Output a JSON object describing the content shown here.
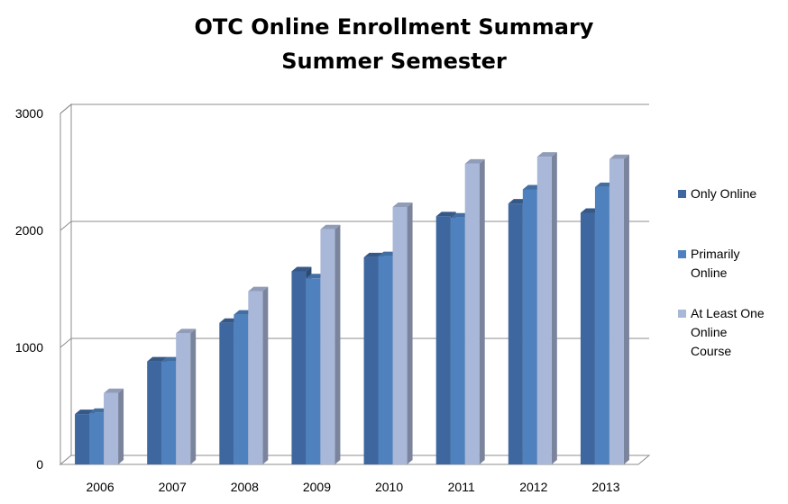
{
  "chart_data": {
    "type": "bar",
    "title": [
      "OTC Online Enrollment Summary",
      "Summer Semester"
    ],
    "categories": [
      "2006",
      "2007",
      "2008",
      "2009",
      "2010",
      "2011",
      "2012",
      "2013"
    ],
    "series": [
      {
        "name": "Only Online",
        "values": [
          430,
          880,
          1210,
          1650,
          1770,
          2120,
          2230,
          2150
        ],
        "color": "#3F679F"
      },
      {
        "name": "Primarily Online",
        "values": [
          440,
          880,
          1280,
          1590,
          1780,
          2110,
          2350,
          2370
        ],
        "color": "#4E81BD"
      },
      {
        "name": "At Least One Online Course",
        "values": [
          610,
          1120,
          1480,
          2010,
          2200,
          2570,
          2630,
          2610
        ],
        "color": "#A9B7D8"
      }
    ],
    "legend_labels": [
      [
        "Only Online"
      ],
      [
        "Primarily",
        "Online"
      ],
      [
        "At Least One",
        "Online",
        "Course"
      ]
    ],
    "ylim": [
      0,
      3000
    ],
    "yticks": [
      "0",
      "1000",
      "2000",
      "3000"
    ],
    "grid": true,
    "legend_position": "right"
  }
}
